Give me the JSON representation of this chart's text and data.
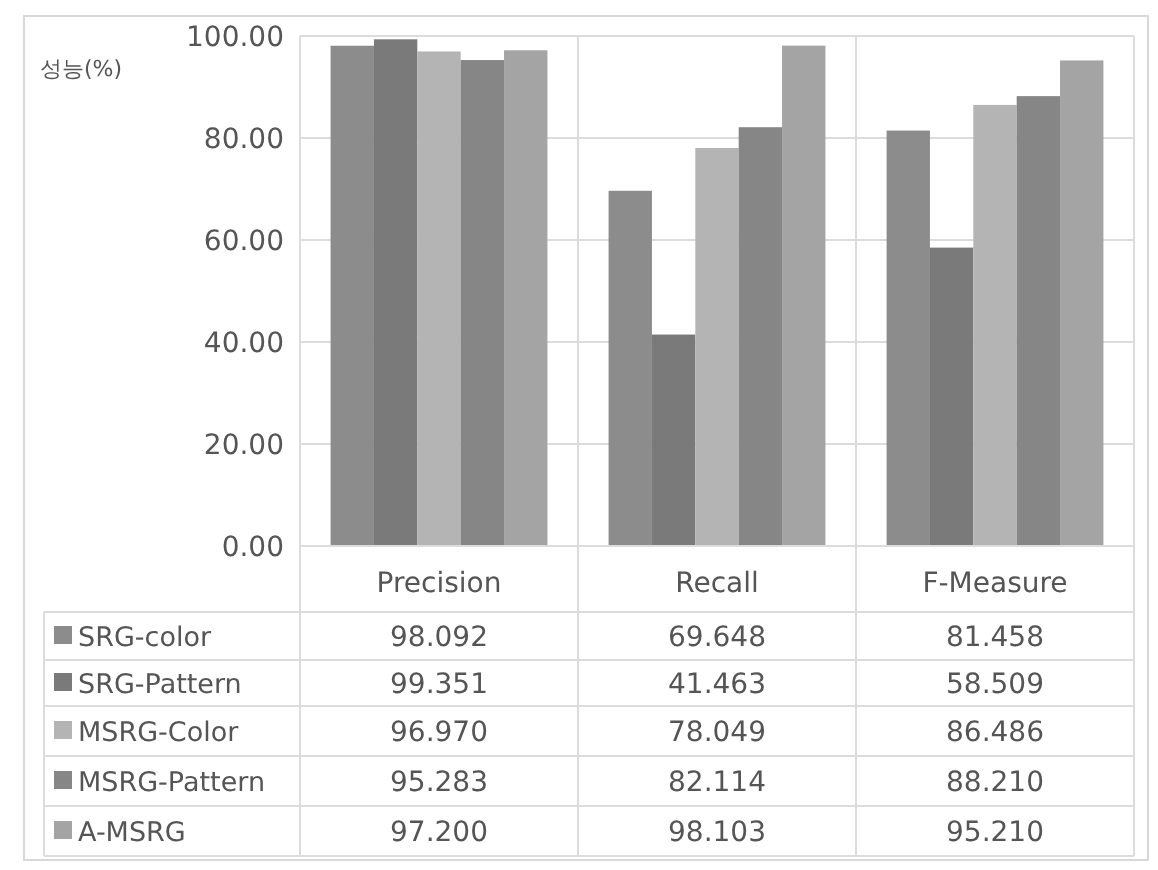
{
  "chart_data": {
    "type": "bar",
    "ylabel": "성능(%)",
    "categories": [
      "Precision",
      "Recall",
      "F-Measure"
    ],
    "series": [
      {
        "name": "SRG-color",
        "color": "#8c8c8c",
        "values": [
          98.092,
          69.648,
          81.458
        ],
        "value_labels": [
          "98.092",
          "69.648",
          "81.458"
        ]
      },
      {
        "name": "SRG-Pattern",
        "color": "#7a7a7a",
        "values": [
          99.351,
          41.463,
          58.509
        ],
        "value_labels": [
          "99.351",
          "41.463",
          "58.509"
        ]
      },
      {
        "name": "MSRG-Color",
        "color": "#b4b4b4",
        "values": [
          96.97,
          78.049,
          86.486
        ],
        "value_labels": [
          "96.970",
          "78.049",
          "86.486"
        ]
      },
      {
        "name": "MSRG-Pattern",
        "color": "#868686",
        "values": [
          95.283,
          82.114,
          88.21
        ],
        "value_labels": [
          "95.283",
          "82.114",
          "88.210"
        ]
      },
      {
        "name": "A-MSRG",
        "color": "#a4a4a4",
        "values": [
          97.2,
          98.103,
          95.21
        ],
        "value_labels": [
          "97.200",
          "98.103",
          "95.210"
        ]
      }
    ],
    "ylim": [
      0,
      100
    ],
    "yticks": [
      {
        "value": 0,
        "label": "0.00"
      },
      {
        "value": 20,
        "label": "20.00"
      },
      {
        "value": 40,
        "label": "40.00"
      },
      {
        "value": 60,
        "label": "60.00"
      },
      {
        "value": 80,
        "label": "80.00"
      },
      {
        "value": 100,
        "label": "100.00"
      }
    ],
    "grid": "y",
    "legend": "bottom"
  }
}
